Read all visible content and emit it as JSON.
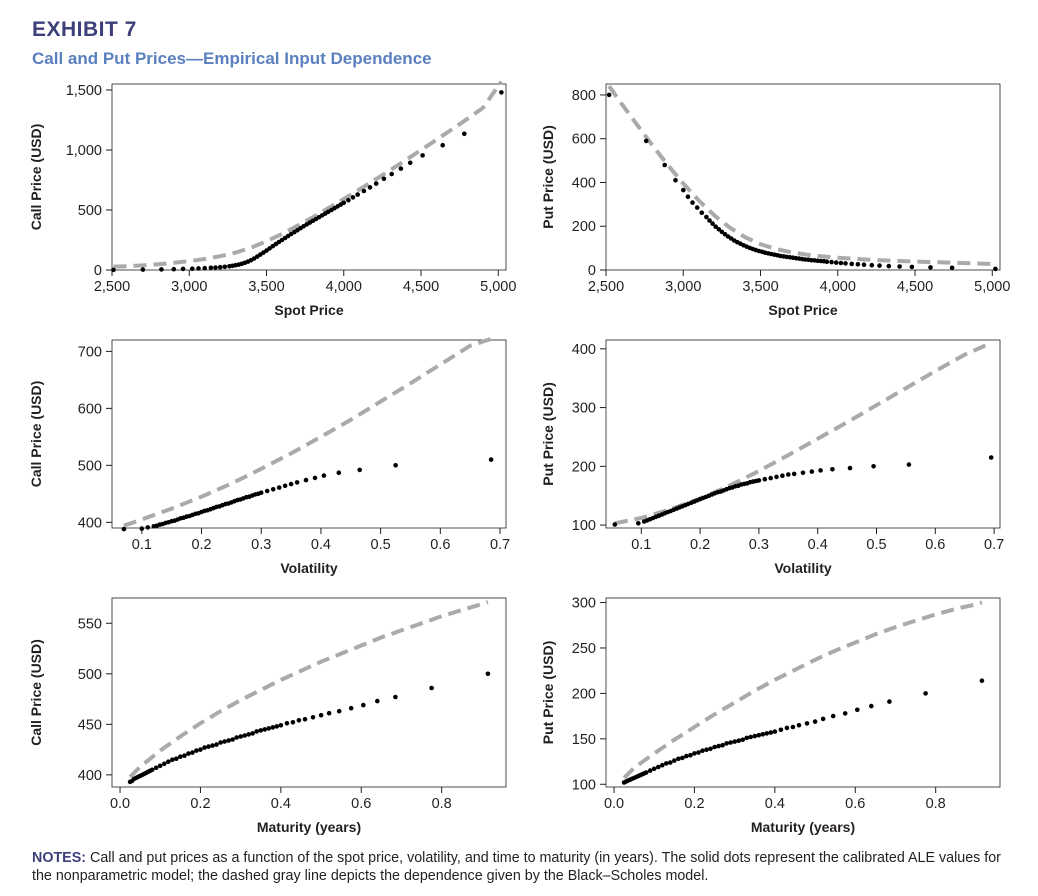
{
  "exhibit": {
    "label": "EXHIBIT 7",
    "title": "Call and Put Prices—Empirical Input Dependence"
  },
  "notes": {
    "label": "NOTES:",
    "text": " Call and put prices as a function of the spot price, volatility, and time to maturity (in years). The solid dots represent the calibrated ALE values for the nonparametric model; the dashed gray line depicts the dependence given by the Black–Scholes model."
  },
  "colors": {
    "dots": "#000000",
    "dashed_line": "#aaaaaa",
    "axis": "#231f20",
    "header": "#3d3f7a",
    "subtitle": "#5b80c0"
  },
  "legend": {
    "dots": "calibrated ALE values for the nonparametric model",
    "dashed": "Black–Scholes model"
  },
  "chart_data": [
    {
      "id": "call-spot",
      "type": "scatter",
      "xlabel": "Spot Price",
      "ylabel": "Call Price (USD)",
      "xlim": [
        2500,
        5050
      ],
      "ylim": [
        0,
        1550
      ],
      "xticks": [
        2500,
        3000,
        3500,
        4000,
        4500,
        5000
      ],
      "xtick_labels": [
        "2,500",
        "3,000",
        "3,500",
        "4,000",
        "4,500",
        "5,000"
      ],
      "yticks": [
        0,
        500,
        1000,
        1500
      ],
      "ytick_labels": [
        "0",
        "500",
        "1,000",
        "1,500"
      ],
      "points": {
        "x": [
          2510,
          2700,
          2820,
          2900,
          2960,
          3020,
          3060,
          3100,
          3140,
          3170,
          3200,
          3230,
          3260,
          3280,
          3300,
          3320,
          3340,
          3360,
          3380,
          3400,
          3420,
          3440,
          3460,
          3480,
          3500,
          3520,
          3540,
          3560,
          3580,
          3600,
          3620,
          3640,
          3660,
          3680,
          3700,
          3720,
          3740,
          3760,
          3780,
          3800,
          3820,
          3840,
          3860,
          3880,
          3900,
          3920,
          3940,
          3960,
          3980,
          4000,
          4030,
          4060,
          4090,
          4130,
          4170,
          4210,
          4260,
          4310,
          4370,
          4430,
          4510,
          4640,
          4780,
          5020
        ],
        "y": [
          1,
          3,
          5,
          7,
          9,
          11,
          13,
          15,
          18,
          20,
          23,
          27,
          31,
          35,
          40,
          45,
          52,
          60,
          70,
          82,
          96,
          112,
          128,
          145,
          162,
          180,
          198,
          216,
          233,
          250,
          267,
          283,
          300,
          316,
          332,
          348,
          364,
          380,
          395,
          410,
          425,
          440,
          455,
          470,
          485,
          500,
          515,
          530,
          545,
          560,
          582,
          605,
          628,
          658,
          688,
          720,
          760,
          800,
          845,
          893,
          955,
          1040,
          1135,
          1480
        ]
      },
      "bs_line": {
        "x": [
          2510,
          2600,
          2700,
          2800,
          2900,
          3000,
          3100,
          3200,
          3300,
          3400,
          3500,
          3600,
          3700,
          3800,
          3900,
          4000,
          4100,
          4200,
          4300,
          4400,
          4500,
          4600,
          4700,
          4800,
          4900,
          5020
        ],
        "y": [
          28,
          32,
          38,
          48,
          60,
          74,
          92,
          115,
          145,
          186,
          240,
          300,
          368,
          440,
          515,
          592,
          670,
          750,
          832,
          915,
          1000,
          1085,
          1172,
          1260,
          1350,
          1570
        ]
      }
    },
    {
      "id": "put-spot",
      "type": "scatter",
      "xlabel": "Spot Price",
      "ylabel": "Put Price (USD)",
      "xlim": [
        2500,
        5050
      ],
      "ylim": [
        0,
        850
      ],
      "xticks": [
        2500,
        3000,
        3500,
        4000,
        4500,
        5000
      ],
      "xtick_labels": [
        "2,500",
        "3,000",
        "3,500",
        "4,000",
        "4,500",
        "5,000"
      ],
      "yticks": [
        0,
        200,
        400,
        600,
        800
      ],
      "ytick_labels": [
        "0",
        "200",
        "400",
        "600",
        "800"
      ],
      "points": {
        "x": [
          2520,
          2760,
          2880,
          2950,
          3000,
          3030,
          3060,
          3090,
          3120,
          3150,
          3170,
          3190,
          3210,
          3230,
          3250,
          3270,
          3290,
          3310,
          3330,
          3350,
          3370,
          3390,
          3410,
          3430,
          3450,
          3470,
          3490,
          3510,
          3530,
          3550,
          3570,
          3590,
          3610,
          3630,
          3650,
          3670,
          3690,
          3710,
          3730,
          3750,
          3770,
          3790,
          3810,
          3830,
          3850,
          3870,
          3890,
          3910,
          3930,
          3960,
          3990,
          4020,
          4050,
          4090,
          4130,
          4170,
          4220,
          4270,
          4330,
          4400,
          4480,
          4600,
          4740,
          5020
        ],
        "y": [
          800,
          590,
          480,
          410,
          365,
          335,
          308,
          285,
          262,
          242,
          226,
          212,
          198,
          186,
          174,
          163,
          153,
          144,
          135,
          127,
          120,
          113,
          107,
          101,
          96,
          91,
          87,
          83,
          79,
          76,
          73,
          70,
          67,
          64,
          62,
          60,
          58,
          56,
          54,
          52,
          50,
          48,
          47,
          45,
          44,
          42,
          41,
          40,
          38,
          36,
          34,
          32,
          30,
          28,
          26,
          24,
          22,
          20,
          18,
          16,
          14,
          12,
          10,
          5
        ]
      },
      "bs_line": {
        "x": [
          2520,
          2600,
          2700,
          2800,
          2900,
          3000,
          3100,
          3200,
          3300,
          3400,
          3500,
          3600,
          3700,
          3800,
          3900,
          4000,
          4200,
          4400,
          4600,
          4800,
          5020
        ],
        "y": [
          840,
          760,
          665,
          570,
          480,
          395,
          318,
          250,
          194,
          150,
          118,
          96,
          81,
          70,
          62,
          56,
          47,
          41,
          36,
          32,
          27
        ]
      }
    },
    {
      "id": "call-vol",
      "type": "scatter",
      "xlabel": "Volatility",
      "ylabel": "Call Price (USD)",
      "xlim": [
        0.05,
        0.71
      ],
      "ylim": [
        390,
        720
      ],
      "xticks": [
        0.1,
        0.2,
        0.3,
        0.4,
        0.5,
        0.6,
        0.7
      ],
      "xtick_labels": [
        "0.1",
        "0.2",
        "0.3",
        "0.4",
        "0.5",
        "0.6",
        "0.7"
      ],
      "yticks": [
        400,
        500,
        600,
        700
      ],
      "ytick_labels": [
        "400",
        "500",
        "600",
        "700"
      ],
      "points": {
        "x": [
          0.07,
          0.1,
          0.11,
          0.12,
          0.125,
          0.13,
          0.135,
          0.14,
          0.145,
          0.15,
          0.155,
          0.16,
          0.165,
          0.17,
          0.175,
          0.18,
          0.185,
          0.19,
          0.195,
          0.2,
          0.205,
          0.21,
          0.215,
          0.22,
          0.225,
          0.23,
          0.235,
          0.24,
          0.245,
          0.25,
          0.255,
          0.26,
          0.265,
          0.27,
          0.275,
          0.28,
          0.285,
          0.29,
          0.295,
          0.3,
          0.31,
          0.32,
          0.33,
          0.34,
          0.35,
          0.36,
          0.375,
          0.39,
          0.405,
          0.43,
          0.465,
          0.525,
          0.685
        ],
        "y": [
          388,
          389,
          391,
          393,
          394,
          396,
          397,
          399,
          400,
          402,
          403,
          405,
          407,
          408,
          410,
          411,
          413,
          415,
          416,
          418,
          420,
          421,
          423,
          425,
          427,
          428,
          430,
          432,
          433,
          435,
          437,
          439,
          440,
          442,
          444,
          445,
          447,
          449,
          450,
          452,
          455,
          458,
          461,
          464,
          467,
          470,
          474,
          478,
          482,
          487,
          492,
          500,
          510
        ]
      },
      "bs_line": {
        "x": [
          0.07,
          0.1,
          0.15,
          0.2,
          0.25,
          0.3,
          0.35,
          0.4,
          0.45,
          0.5,
          0.55,
          0.6,
          0.65,
          0.685
        ],
        "y": [
          394,
          405,
          424,
          445,
          468,
          494,
          521,
          550,
          580,
          612,
          644,
          677,
          710,
          722
        ]
      }
    },
    {
      "id": "put-vol",
      "type": "scatter",
      "xlabel": "Volatility",
      "ylabel": "Put Price (USD)",
      "xlim": [
        0.04,
        0.71
      ],
      "ylim": [
        95,
        415
      ],
      "xticks": [
        0.1,
        0.2,
        0.3,
        0.4,
        0.5,
        0.6,
        0.7
      ],
      "xtick_labels": [
        "0.1",
        "0.2",
        "0.3",
        "0.4",
        "0.5",
        "0.6",
        "0.7"
      ],
      "yticks": [
        100,
        200,
        300,
        400
      ],
      "ytick_labels": [
        "100",
        "200",
        "300",
        "400"
      ],
      "points": {
        "x": [
          0.055,
          0.095,
          0.105,
          0.11,
          0.115,
          0.12,
          0.125,
          0.13,
          0.135,
          0.14,
          0.145,
          0.15,
          0.155,
          0.16,
          0.165,
          0.17,
          0.175,
          0.18,
          0.185,
          0.19,
          0.195,
          0.2,
          0.205,
          0.21,
          0.215,
          0.22,
          0.225,
          0.23,
          0.235,
          0.24,
          0.245,
          0.25,
          0.255,
          0.26,
          0.265,
          0.27,
          0.275,
          0.28,
          0.285,
          0.29,
          0.295,
          0.3,
          0.31,
          0.32,
          0.33,
          0.34,
          0.35,
          0.36,
          0.375,
          0.39,
          0.405,
          0.425,
          0.455,
          0.495,
          0.555,
          0.695
        ],
        "y": [
          101,
          103,
          106,
          108,
          110,
          112,
          114,
          116,
          118,
          120,
          122,
          124,
          126,
          128,
          130,
          132,
          134,
          136,
          138,
          140,
          142,
          144,
          146,
          148,
          150,
          152,
          154,
          156,
          157,
          159,
          161,
          163,
          164,
          166,
          167,
          169,
          170,
          171,
          173,
          174,
          175,
          176,
          178,
          180,
          182,
          184,
          186,
          187,
          189,
          191,
          193,
          195,
          197,
          200,
          203,
          215
        ]
      },
      "bs_line": {
        "x": [
          0.055,
          0.1,
          0.15,
          0.2,
          0.25,
          0.3,
          0.35,
          0.4,
          0.45,
          0.5,
          0.55,
          0.6,
          0.65,
          0.695
        ],
        "y": [
          103,
          112,
          127,
          145,
          167,
          192,
          219,
          247,
          275,
          304,
          333,
          362,
          390,
          410
        ]
      }
    },
    {
      "id": "call-mat",
      "type": "scatter",
      "xlabel": "Maturity (years)",
      "ylabel": "Call Price (USD)",
      "xlim": [
        -0.02,
        0.96
      ],
      "ylim": [
        388,
        575
      ],
      "xticks": [
        0.0,
        0.2,
        0.4,
        0.6,
        0.8
      ],
      "xtick_labels": [
        "0.0",
        "0.2",
        "0.4",
        "0.6",
        "0.8"
      ],
      "yticks": [
        400,
        450,
        500,
        550
      ],
      "ytick_labels": [
        "400",
        "450",
        "500",
        "550"
      ],
      "points": {
        "x": [
          0.025,
          0.03,
          0.035,
          0.04,
          0.045,
          0.05,
          0.055,
          0.06,
          0.065,
          0.07,
          0.075,
          0.08,
          0.09,
          0.1,
          0.11,
          0.12,
          0.13,
          0.14,
          0.15,
          0.16,
          0.17,
          0.18,
          0.19,
          0.2,
          0.21,
          0.22,
          0.23,
          0.24,
          0.25,
          0.26,
          0.27,
          0.28,
          0.29,
          0.3,
          0.31,
          0.32,
          0.33,
          0.34,
          0.35,
          0.36,
          0.37,
          0.38,
          0.39,
          0.4,
          0.415,
          0.43,
          0.445,
          0.46,
          0.48,
          0.5,
          0.52,
          0.545,
          0.575,
          0.605,
          0.64,
          0.685,
          0.775,
          0.915
        ],
        "y": [
          393,
          394,
          396,
          397,
          398,
          399,
          400,
          401,
          402,
          403,
          404,
          405,
          407,
          409,
          411,
          413,
          415,
          416,
          418,
          419,
          421,
          422,
          424,
          425,
          427,
          428,
          429,
          430,
          432,
          433,
          434,
          435,
          437,
          438,
          439,
          440,
          441,
          443,
          444,
          445,
          446,
          447,
          448,
          449,
          451,
          452,
          454,
          455,
          457,
          459,
          461,
          463,
          466,
          469,
          473,
          477,
          486,
          500
        ]
      },
      "bs_line": {
        "x": [
          0.025,
          0.05,
          0.1,
          0.15,
          0.2,
          0.25,
          0.3,
          0.35,
          0.4,
          0.45,
          0.5,
          0.55,
          0.6,
          0.65,
          0.7,
          0.75,
          0.8,
          0.85,
          0.9,
          0.915
        ],
        "y": [
          398,
          408,
          424,
          438,
          451,
          463,
          474,
          484,
          494,
          503,
          512,
          520,
          528,
          536,
          543,
          550,
          557,
          563,
          569,
          571
        ]
      }
    },
    {
      "id": "put-mat",
      "type": "scatter",
      "xlabel": "Maturity (years)",
      "ylabel": "Put Price (USD)",
      "xlim": [
        -0.02,
        0.96
      ],
      "ylim": [
        97,
        305
      ],
      "xticks": [
        0.0,
        0.2,
        0.4,
        0.6,
        0.8
      ],
      "xtick_labels": [
        "0.0",
        "0.2",
        "0.4",
        "0.6",
        "0.8"
      ],
      "yticks": [
        100,
        150,
        200,
        250,
        300
      ],
      "ytick_labels": [
        "100",
        "150",
        "200",
        "250",
        "300"
      ],
      "points": {
        "x": [
          0.025,
          0.03,
          0.035,
          0.04,
          0.045,
          0.05,
          0.055,
          0.06,
          0.065,
          0.07,
          0.075,
          0.08,
          0.09,
          0.1,
          0.11,
          0.12,
          0.13,
          0.14,
          0.15,
          0.16,
          0.17,
          0.18,
          0.19,
          0.2,
          0.21,
          0.22,
          0.23,
          0.24,
          0.25,
          0.26,
          0.27,
          0.28,
          0.29,
          0.3,
          0.31,
          0.32,
          0.33,
          0.34,
          0.35,
          0.36,
          0.37,
          0.38,
          0.39,
          0.4,
          0.415,
          0.43,
          0.445,
          0.46,
          0.48,
          0.5,
          0.52,
          0.545,
          0.575,
          0.605,
          0.64,
          0.685,
          0.775,
          0.915
        ],
        "y": [
          102,
          103,
          104,
          105,
          106,
          107,
          108,
          109,
          110,
          111,
          112,
          113,
          115,
          117,
          119,
          121,
          123,
          124,
          126,
          128,
          129,
          131,
          132,
          134,
          135,
          137,
          138,
          139,
          141,
          142,
          143,
          145,
          146,
          147,
          148,
          149,
          151,
          152,
          153,
          154,
          155,
          156,
          157,
          158,
          160,
          162,
          163,
          165,
          167,
          169,
          172,
          175,
          178,
          182,
          186,
          191,
          200,
          214
        ]
      },
      "bs_line": {
        "x": [
          0.025,
          0.05,
          0.1,
          0.15,
          0.2,
          0.25,
          0.3,
          0.35,
          0.4,
          0.45,
          0.5,
          0.55,
          0.6,
          0.65,
          0.7,
          0.75,
          0.8,
          0.85,
          0.9,
          0.915
        ],
        "y": [
          107,
          118,
          134,
          149,
          163,
          177,
          190,
          203,
          215,
          226,
          237,
          247,
          256,
          265,
          273,
          280,
          287,
          293,
          298,
          300
        ]
      }
    }
  ]
}
